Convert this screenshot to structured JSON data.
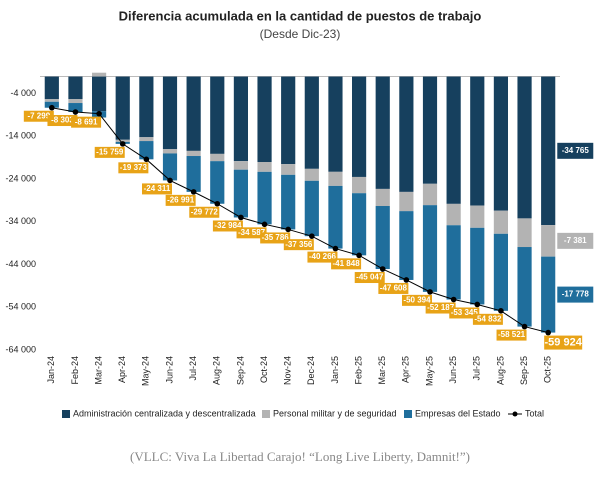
{
  "chart_data": {
    "type": "bar",
    "stacked": true,
    "title": "Diferencia acumulada en la cantidad de puestos de trabajo",
    "subtitle": "(Desde Dic-23)",
    "categories": [
      "Jan-24",
      "Feb-24",
      "Mar-24",
      "Apr-24",
      "May-24",
      "Jun-24",
      "Jul-24",
      "Aug-24",
      "Sep-24",
      "Oct-24",
      "Nov-24",
      "Dec-24",
      "Jan-25",
      "Feb-25",
      "Mar-25",
      "Apr-25",
      "May-25",
      "Jun-25",
      "Jul-25",
      "Aug-25",
      "Sep-25",
      "Oct-25"
    ],
    "ylim": [
      -64000,
      2000
    ],
    "yticks": [
      {
        "value": -4000,
        "label": "-4 000"
      },
      {
        "value": -14000,
        "label": "-14 000"
      },
      {
        "value": -24000,
        "label": "-24 000"
      },
      {
        "value": -34000,
        "label": "-34 000"
      },
      {
        "value": -44000,
        "label": "-44 000"
      },
      {
        "value": -54000,
        "label": "-54 000"
      },
      {
        "value": -64000,
        "label": "-64 000"
      }
    ],
    "series": [
      {
        "name": "Administración centralizada y descentralizada",
        "type": "bar",
        "color": "#16405e",
        "values": [
          -5300,
          -5300,
          -8100,
          -14800,
          -14200,
          -17000,
          -17400,
          -18100,
          -19800,
          -20000,
          -20500,
          -21600,
          -22300,
          -23500,
          -26300,
          -27000,
          -25100,
          -29800,
          -30200,
          -31400,
          -33200,
          -34765
        ],
        "value_labels": [
          null,
          null,
          null,
          null,
          null,
          null,
          null,
          null,
          null,
          null,
          null,
          null,
          null,
          null,
          null,
          null,
          null,
          null,
          null,
          null,
          null,
          "-34 765"
        ]
      },
      {
        "name": "Personal militar y de seguridad",
        "type": "bar",
        "color": "#b3b3b3",
        "values": [
          -600,
          -900,
          900,
          -500,
          -900,
          -1000,
          -1200,
          -1700,
          -2000,
          -2300,
          -2500,
          -2800,
          -3300,
          -3800,
          -4000,
          -4500,
          -5000,
          -5000,
          -5200,
          -5400,
          -6700,
          -7381
        ],
        "value_labels": [
          null,
          null,
          null,
          null,
          null,
          null,
          null,
          null,
          null,
          null,
          null,
          null,
          null,
          null,
          null,
          null,
          null,
          null,
          null,
          null,
          null,
          "-7 381"
        ]
      },
      {
        "name": "Empresas del Estado",
        "type": "bar",
        "color": "#1f6e9c",
        "values": [
          -1399,
          -2103,
          -1491,
          -459,
          -4273,
          -6311,
          -8391,
          -9972,
          -11184,
          -12287,
          -12786,
          -12956,
          -14666,
          -14548,
          -14747,
          -16108,
          -20294,
          -17387,
          -17945,
          -18032,
          -18621,
          -17778
        ],
        "value_labels": [
          null,
          null,
          null,
          null,
          null,
          null,
          null,
          null,
          null,
          null,
          null,
          null,
          null,
          null,
          null,
          null,
          null,
          null,
          null,
          null,
          null,
          "-17 778"
        ]
      },
      {
        "name": "Total",
        "type": "line",
        "color": "#000000",
        "label_color": "#e8a317",
        "values": [
          -7299,
          -8303,
          -8691,
          -15759,
          -19373,
          -24311,
          -26991,
          -29772,
          -32984,
          -34587,
          -35786,
          -37356,
          -40266,
          -41848,
          -45047,
          -47608,
          -50394,
          -52187,
          -53345,
          -54832,
          -58521,
          -59924
        ],
        "value_labels": [
          "-7 299",
          "-8 303",
          "-8 691",
          "-15 759",
          "-19 373",
          "-24 311",
          "-26 991",
          "-29 772",
          "-32 984",
          "-34 587",
          "-35 786",
          "-37 356",
          "-40 266",
          "-41 848",
          "-45 047",
          "-47 608",
          "-50 394",
          "-52 187",
          "-53 345",
          "-54 832",
          "-58 521",
          "-59 924"
        ]
      }
    ]
  },
  "caption": "(VLLC: Viva La Libertad Carajo! “Long Live Liberty, Damnit!”)"
}
